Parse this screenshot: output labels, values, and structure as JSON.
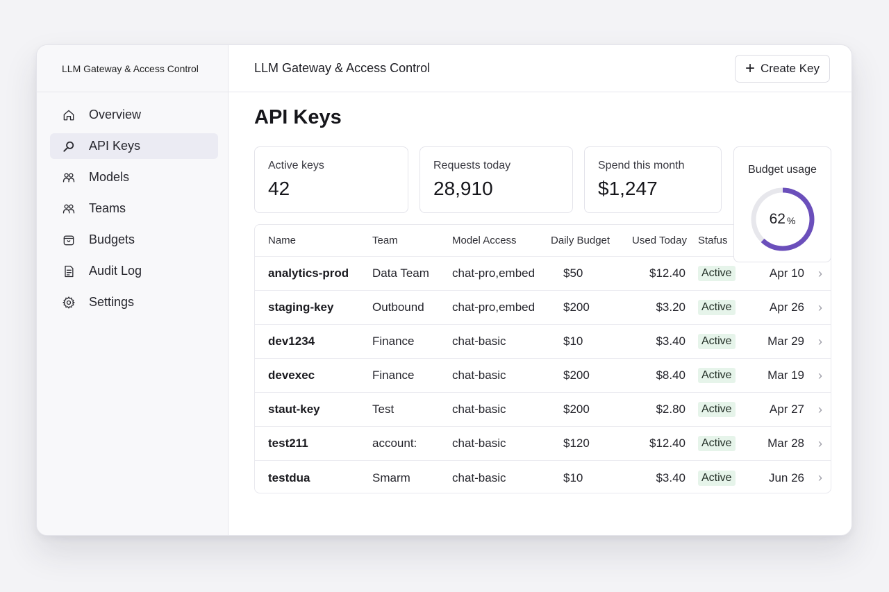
{
  "app": {
    "sidebar_title": "LLM Gateway & Access Control",
    "topbar_title": "LLM Gateway & Access Control"
  },
  "toolbar": {
    "create_label": "Create Key"
  },
  "page": {
    "title": "API Keys"
  },
  "sidebar": {
    "items": [
      {
        "label": "Overview",
        "icon": "home-icon"
      },
      {
        "label": "API Keys",
        "icon": "search-icon",
        "active": true
      },
      {
        "label": "Models",
        "icon": "users-icon"
      },
      {
        "label": "Teams",
        "icon": "team-icon"
      },
      {
        "label": "Budgets",
        "icon": "wallet-icon"
      },
      {
        "label": "Audit Log",
        "icon": "document-icon"
      },
      {
        "label": "Settings",
        "icon": "gear-icon"
      }
    ]
  },
  "stats": {
    "active_keys": {
      "label": "Active keys",
      "value": "42"
    },
    "requests_today": {
      "label": "Requests today",
      "value": "28,910"
    },
    "spend_month": {
      "label": "Spend this month",
      "value": "$1,247"
    },
    "budget": {
      "label": "Budget usage",
      "value": "62",
      "unit": "%",
      "fraction": 0.62,
      "color": "#6b4fbb",
      "track_color": "#e7e7ec"
    }
  },
  "table": {
    "headers": [
      "Name",
      "Team",
      "Model Access",
      "Daily Budget",
      "Used Today",
      "Stafus"
    ],
    "rows": [
      {
        "name": "analytics-prod",
        "team": "Data Team",
        "models": "chat-pro,embed",
        "budget": "$50",
        "used": "$12.40",
        "status": "Active",
        "date": "Apr 10"
      },
      {
        "name": "staging-key",
        "team": "Outbound",
        "models": "chat-pro,embed",
        "budget": "$200",
        "used": "$3.20",
        "status": "Active",
        "date": "Apr 26"
      },
      {
        "name": "dev1234",
        "team": "Finance",
        "models": "chat-basic",
        "budget": "$10",
        "used": "$3.40",
        "status": "Active",
        "date": "Mar 29"
      },
      {
        "name": "devexec",
        "team": "Finance",
        "models": "chat-basic",
        "budget": "$200",
        "used": "$8.40",
        "status": "Active",
        "date": "Mar 19"
      },
      {
        "name": "staut-key",
        "team": "Test",
        "models": "chat-basic",
        "budget": "$200",
        "used": "$2.80",
        "status": "Active",
        "date": "Apr 27"
      },
      {
        "name": "test211",
        "team": "account:",
        "models": "chat-basic",
        "budget": "$120",
        "used": "$12.40",
        "status": "Active",
        "date": "Mar 28"
      },
      {
        "name": "testdua",
        "team": "Smarm",
        "models": "chat-basic",
        "budget": "$10",
        "used": "$3.40",
        "status": "Active",
        "date": "Jun 26"
      }
    ]
  },
  "colors": {
    "status_bg": "#e6f4ea",
    "active_nav_bg": "#ebebf3"
  }
}
